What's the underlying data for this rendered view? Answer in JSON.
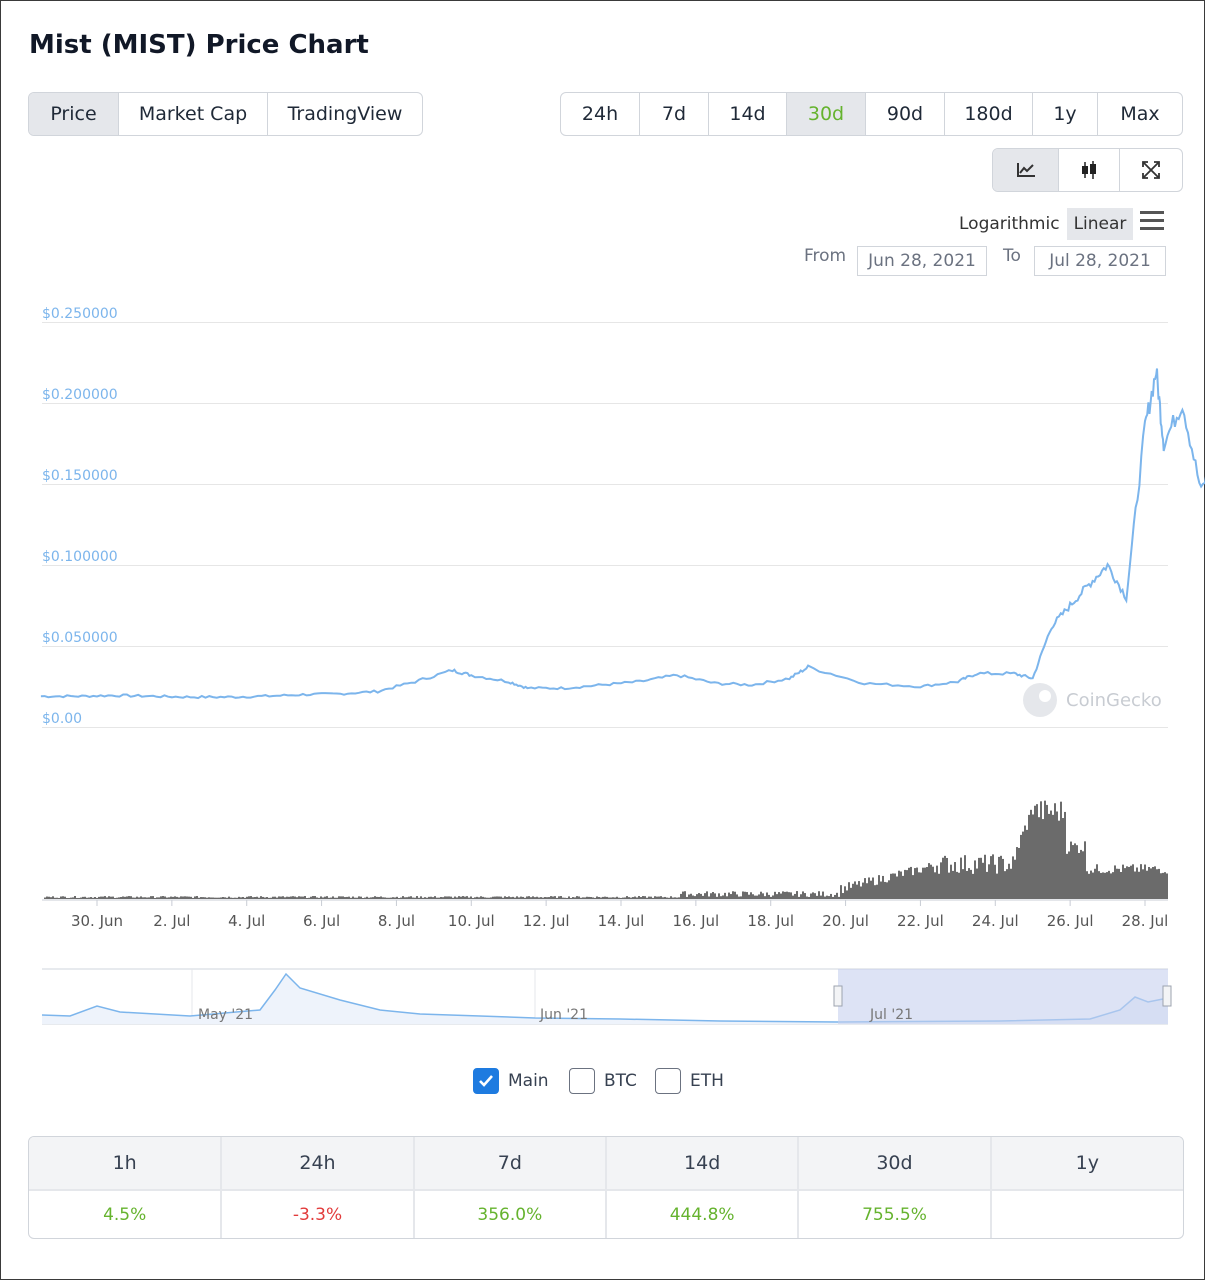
{
  "title": "Mist (MIST) Price Chart",
  "view_tabs": [
    {
      "label": "Price",
      "active": true
    },
    {
      "label": "Market Cap",
      "active": false
    },
    {
      "label": "TradingView",
      "active": false
    }
  ],
  "range_tabs": [
    {
      "label": "24h",
      "active": false
    },
    {
      "label": "7d",
      "active": false
    },
    {
      "label": "14d",
      "active": false
    },
    {
      "label": "30d",
      "active": true
    },
    {
      "label": "90d",
      "active": false
    },
    {
      "label": "180d",
      "active": false
    },
    {
      "label": "1y",
      "active": false
    },
    {
      "label": "Max",
      "active": false
    }
  ],
  "chart_tools": [
    {
      "icon": "line-chart-icon",
      "active": true
    },
    {
      "icon": "candlestick-icon",
      "active": false
    },
    {
      "icon": "fullscreen-icon",
      "active": false
    }
  ],
  "scale": {
    "logarithmic_label": "Logarithmic",
    "linear_label": "Linear",
    "selected": "Linear"
  },
  "date_range": {
    "from_label": "From",
    "from_value": "Jun 28, 2021",
    "to_label": "To",
    "to_value": "Jul 28, 2021"
  },
  "watermark": "CoinGecko",
  "colors": {
    "line": "#7cb5ec",
    "volume": "#6b6b6b",
    "up": "#65b32e",
    "down": "#e23b3b",
    "navigator_fill": "#d5dcf0"
  },
  "chart_data": {
    "type": "line",
    "y_ticks": [
      "$0.250000",
      "$0.200000",
      "$0.150000",
      "$0.100000",
      "$0.050000",
      "$0.00"
    ],
    "ylim": [
      0,
      0.25
    ],
    "x_ticks": [
      "30. Jun",
      "2. Jul",
      "4. Jul",
      "6. Jul",
      "8. Jul",
      "10. Jul",
      "12. Jul",
      "14. Jul",
      "16. Jul",
      "18. Jul",
      "20. Jul",
      "22. Jul",
      "24. Jul",
      "26. Jul",
      "28. Jul"
    ],
    "xlim_days": [
      28.5,
      58.5
    ],
    "price": [
      [
        28.5,
        0.019
      ],
      [
        29.5,
        0.019
      ],
      [
        30.5,
        0.0195
      ],
      [
        31.5,
        0.019
      ],
      [
        32.5,
        0.0185
      ],
      [
        33.5,
        0.0185
      ],
      [
        34.5,
        0.019
      ],
      [
        35.5,
        0.02
      ],
      [
        36.5,
        0.0205
      ],
      [
        37.5,
        0.022
      ],
      [
        38.5,
        0.028
      ],
      [
        39.5,
        0.035
      ],
      [
        40.0,
        0.032
      ],
      [
        41.0,
        0.028
      ],
      [
        41.5,
        0.024
      ],
      [
        42.5,
        0.024
      ],
      [
        43.5,
        0.026
      ],
      [
        44.5,
        0.028
      ],
      [
        45.5,
        0.032
      ],
      [
        46.5,
        0.027
      ],
      [
        47.5,
        0.026
      ],
      [
        48.5,
        0.03
      ],
      [
        49.0,
        0.037
      ],
      [
        50.5,
        0.027
      ],
      [
        52.0,
        0.025
      ],
      [
        53.0,
        0.028
      ],
      [
        53.5,
        0.033
      ],
      [
        54.5,
        0.033
      ],
      [
        55.0,
        0.03
      ],
      [
        55.5,
        0.062
      ],
      [
        56.0,
        0.075
      ],
      [
        56.5,
        0.088
      ],
      [
        57.0,
        0.1
      ],
      [
        57.5,
        0.08
      ],
      [
        58.0,
        0.185
      ],
      [
        58.3,
        0.22
      ],
      [
        58.5,
        0.175
      ],
      [
        59.0,
        0.2
      ],
      [
        59.5,
        0.145
      ],
      [
        60.0,
        0.18
      ],
      [
        60.5,
        0.2
      ],
      [
        61.0,
        0.17
      ],
      [
        61.5,
        0.175
      ],
      [
        62.0,
        0.145
      ],
      [
        62.5,
        0.165
      ],
      [
        63.0,
        0.155
      ]
    ],
    "volume_note": "",
    "navigator_labels": [
      "May '21",
      "Jun '21",
      "Jul '21"
    ]
  },
  "legend": [
    {
      "label": "Main",
      "checked": true
    },
    {
      "label": "BTC",
      "checked": false
    },
    {
      "label": "ETH",
      "checked": false
    }
  ],
  "stats": {
    "headers": [
      "1h",
      "24h",
      "7d",
      "14d",
      "30d",
      "1y"
    ],
    "values": [
      {
        "text": "4.5%",
        "trend": "up"
      },
      {
        "text": "-3.3%",
        "trend": "down"
      },
      {
        "text": "356.0%",
        "trend": "up"
      },
      {
        "text": "444.8%",
        "trend": "up"
      },
      {
        "text": "755.5%",
        "trend": "up"
      },
      {
        "text": "",
        "trend": "none"
      }
    ]
  }
}
